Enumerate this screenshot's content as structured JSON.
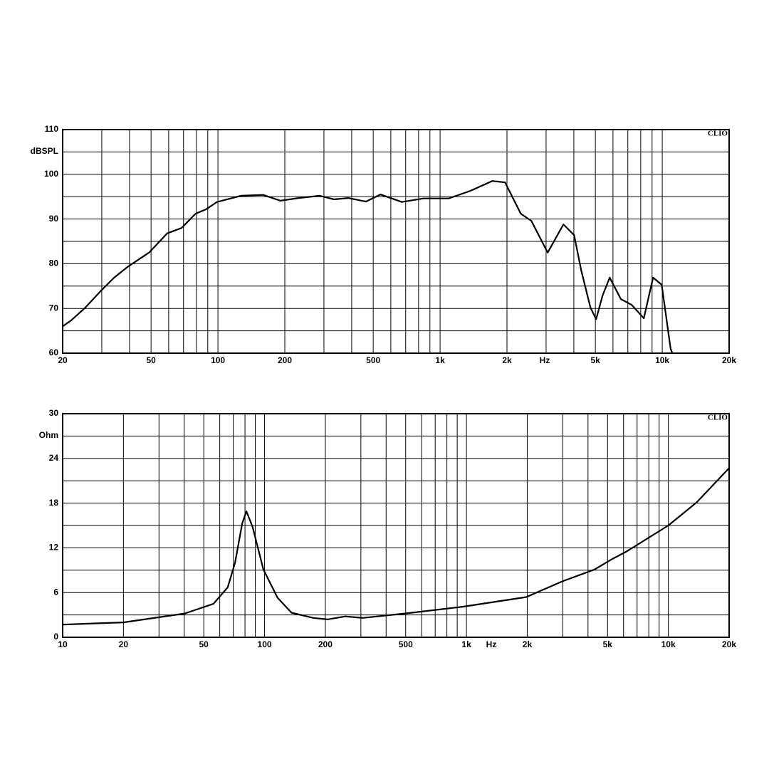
{
  "chart_data": [
    {
      "type": "line",
      "y_label": "dBSPL",
      "logo": "CLIO",
      "x_unit": "Hz",
      "log_x": true,
      "grid": true,
      "color": "#000000",
      "xlim": [
        20,
        20000
      ],
      "ylim": [
        60,
        110
      ],
      "xticks": [
        20,
        50,
        100,
        200,
        500,
        {
          "value": 1000,
          "label": "1k"
        },
        {
          "value": 2000,
          "label": "2k"
        },
        {
          "value": 5000,
          "label": "5k"
        },
        {
          "value": 10000,
          "label": "10k"
        },
        {
          "value": 20000,
          "label": "20k"
        }
      ],
      "xgrid": [
        30,
        40,
        60,
        70,
        80,
        90,
        300,
        400,
        600,
        700,
        800,
        900,
        3000,
        4000,
        6000,
        7000,
        8000,
        9000
      ],
      "yticks": [
        60,
        70,
        80,
        90,
        100,
        110
      ],
      "ygrid": [
        65,
        75,
        85,
        95,
        105
      ],
      "x": [
        20,
        21.8,
        25.3,
        29.8,
        34.1,
        39.2,
        49,
        59.1,
        68.6,
        79.3,
        88.6,
        99,
        127,
        160,
        191,
        231,
        287,
        333,
        386,
        464,
        539,
        673,
        841,
        1093,
        1370,
        1717,
        1961,
        2308,
        2574,
        3050,
        3590,
        4010,
        4320,
        4750,
        5040,
        5390,
        5800,
        6510,
        7290,
        8260,
        9090,
        9940,
        10900,
        11100
      ],
      "values": [
        66.0,
        67.3,
        70.2,
        74.0,
        76.9,
        79.3,
        82.5,
        86.8,
        88.0,
        91.2,
        92.2,
        93.8,
        95.2,
        95.4,
        94.1,
        94.7,
        95.2,
        94.4,
        94.7,
        93.9,
        95.5,
        93.8,
        94.6,
        94.6,
        96.3,
        98.5,
        98.2,
        91.2,
        89.6,
        82.5,
        88.8,
        86.4,
        78.5,
        70.2,
        67.6,
        72.9,
        76.9,
        72.1,
        70.8,
        67.8,
        76.9,
        75.3,
        61.0,
        60
      ]
    },
    {
      "type": "line",
      "y_label": "Ohm",
      "logo": "CLIO",
      "x_unit": "Hz",
      "log_x": true,
      "grid": true,
      "color": "#000000",
      "xlim": [
        10,
        20000
      ],
      "ylim": [
        0,
        30
      ],
      "xticks": [
        10,
        20,
        50,
        100,
        200,
        500,
        {
          "value": 1000,
          "label": "1k"
        },
        {
          "value": 2000,
          "label": "2k"
        },
        {
          "value": 5000,
          "label": "5k"
        },
        {
          "value": 10000,
          "label": "10k"
        },
        {
          "value": 20000,
          "label": "20k"
        }
      ],
      "xgrid": [
        30,
        40,
        60,
        70,
        80,
        90,
        300,
        400,
        600,
        700,
        800,
        900,
        3000,
        4000,
        6000,
        7000,
        8000,
        9000
      ],
      "yticks": [
        0,
        6,
        12,
        18,
        24,
        30
      ],
      "ygrid": [
        3,
        9,
        15,
        21,
        27
      ],
      "x": [
        10,
        20,
        40.4,
        55.9,
        65.7,
        71.4,
        77.5,
        81.3,
        87.3,
        98.7,
        116,
        136,
        174,
        205,
        251,
        307,
        500,
        957,
        1980,
        2980,
        4310,
        5270,
        6200,
        10000,
        13800,
        20000
      ],
      "values": [
        1.7,
        2.0,
        3.2,
        4.5,
        6.7,
        10.0,
        15.3,
        16.9,
        14.8,
        9.1,
        5.3,
        3.3,
        2.6,
        2.4,
        2.8,
        2.6,
        3.2,
        4.1,
        5.4,
        7.5,
        9.1,
        10.5,
        11.5,
        15.0,
        18.1,
        22.7
      ]
    }
  ]
}
